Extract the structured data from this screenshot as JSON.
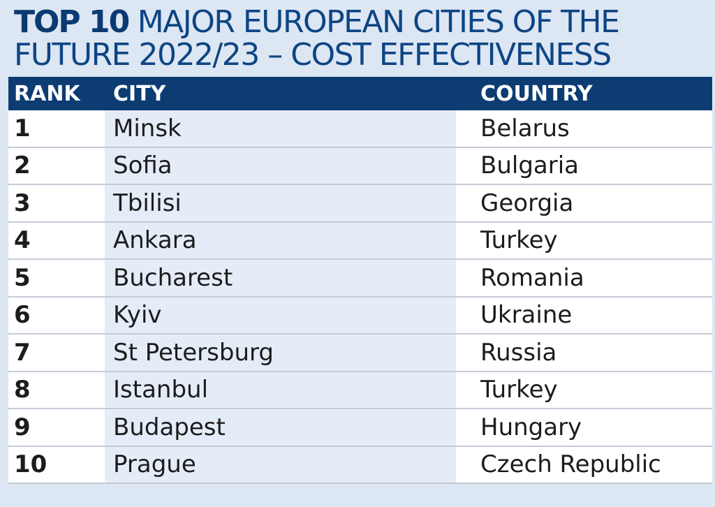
{
  "title": {
    "bold": "TOP 10",
    "rest": " MAJOR EUROPEAN CITIES OF THE FUTURE 2022/23 – COST EFFECTIVENESS"
  },
  "table": {
    "headers": {
      "rank": "RANK",
      "city": "CITY",
      "country": "COUNTRY"
    },
    "rows": [
      {
        "rank": "1",
        "city": "Minsk",
        "country": "Belarus"
      },
      {
        "rank": "2",
        "city": "Sofia",
        "country": "Bulgaria"
      },
      {
        "rank": "3",
        "city": "Tbilisi",
        "country": "Georgia"
      },
      {
        "rank": "4",
        "city": "Ankara",
        "country": "Turkey"
      },
      {
        "rank": "5",
        "city": "Bucharest",
        "country": "Romania"
      },
      {
        "rank": "6",
        "city": "Kyiv",
        "country": "Ukraine"
      },
      {
        "rank": "7",
        "city": "St Petersburg",
        "country": "Russia"
      },
      {
        "rank": "8",
        "city": "Istanbul",
        "country": "Turkey"
      },
      {
        "rank": "9",
        "city": "Budapest",
        "country": "Hungary"
      },
      {
        "rank": "10",
        "city": "Prague",
        "country": "Czech Republic"
      }
    ]
  },
  "colors": {
    "background": "#dde6f3",
    "title": "#0d4584",
    "header_bg": "#0c3c72",
    "city_column_bg": "#e4ecf8"
  }
}
